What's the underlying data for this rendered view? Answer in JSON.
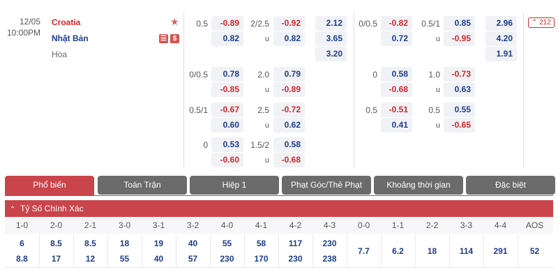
{
  "match": {
    "date": "12/05",
    "time": "10:00PM",
    "home": "Croatia",
    "away": "Nhật Bản",
    "draw": "Hòa",
    "star_icon": "star-icon",
    "badge_icons": [
      "bet-slip-icon",
      "dollar-icon"
    ],
    "more_count": "212"
  },
  "ft": {
    "handicap_rows": [
      {
        "line": "0.5",
        "home": "-0.89",
        "away": "0.82"
      },
      {
        "line": "0/0.5",
        "home": "0.78",
        "away": "-0.85"
      },
      {
        "line": "0.5/1",
        "home": "-0.67",
        "away": "0.60"
      },
      {
        "line": "0",
        "home": "0.53",
        "away": "-0.60"
      }
    ],
    "ou_rows": [
      {
        "line": "2/2.5",
        "over": "-0.92",
        "under_label": "u",
        "under": "0.82"
      },
      {
        "line": "2.0",
        "over": "0.79",
        "under_label": "u",
        "under": "-0.89"
      },
      {
        "line": "2.5",
        "over": "-0.72",
        "under_label": "u",
        "under": "0.62"
      },
      {
        "line": "1.5/2",
        "over": "0.58",
        "under_label": "u",
        "under": "-0.68"
      }
    ],
    "x12": [
      "2.12",
      "3.65",
      "3.20"
    ]
  },
  "ht": {
    "handicap_rows": [
      {
        "line": "0/0.5",
        "home": "-0.82",
        "away": "0.72"
      },
      {
        "line": "0",
        "home": "0.58",
        "away": "-0.68"
      },
      {
        "line": "0.5",
        "home": "-0.51",
        "away": "0.41"
      }
    ],
    "ou_rows": [
      {
        "line": "0.5/1",
        "over": "0.85",
        "under_label": "u",
        "under": "-0.95"
      },
      {
        "line": "1.0",
        "over": "-0.73",
        "under_label": "u",
        "under": "0.63"
      },
      {
        "line": "0.5",
        "over": "0.55",
        "under_label": "u",
        "under": "-0.65"
      }
    ],
    "x12": [
      "2.96",
      "4.20",
      "1.91"
    ]
  },
  "tabs": [
    "Phổ biến",
    "Toàn Trận",
    "Hiệp 1",
    "Phạt Góc/Thẻ Phạt",
    "Khoảng thời gian",
    "Đặc biệt"
  ],
  "section": {
    "title": "Tỷ Số Chính Xác",
    "toggle_icon": "chevron-up-icon"
  },
  "correct_score": {
    "headers": [
      "1-0",
      "2-0",
      "2-1",
      "3-0",
      "3-1",
      "3-2",
      "4-0",
      "4-1",
      "4-2",
      "4-3",
      "0-0",
      "1-1",
      "2-2",
      "3-3",
      "4-4",
      "AOS"
    ],
    "home": [
      "6",
      "8.5",
      "8.5",
      "18",
      "19",
      "40",
      "55",
      "58",
      "117",
      "230"
    ],
    "away": [
      "8.8",
      "17",
      "12",
      "55",
      "40",
      "57",
      "230",
      "170",
      "230",
      "238"
    ],
    "draws": [
      "7.7",
      "6.2",
      "18",
      "114",
      "291",
      "52"
    ]
  }
}
